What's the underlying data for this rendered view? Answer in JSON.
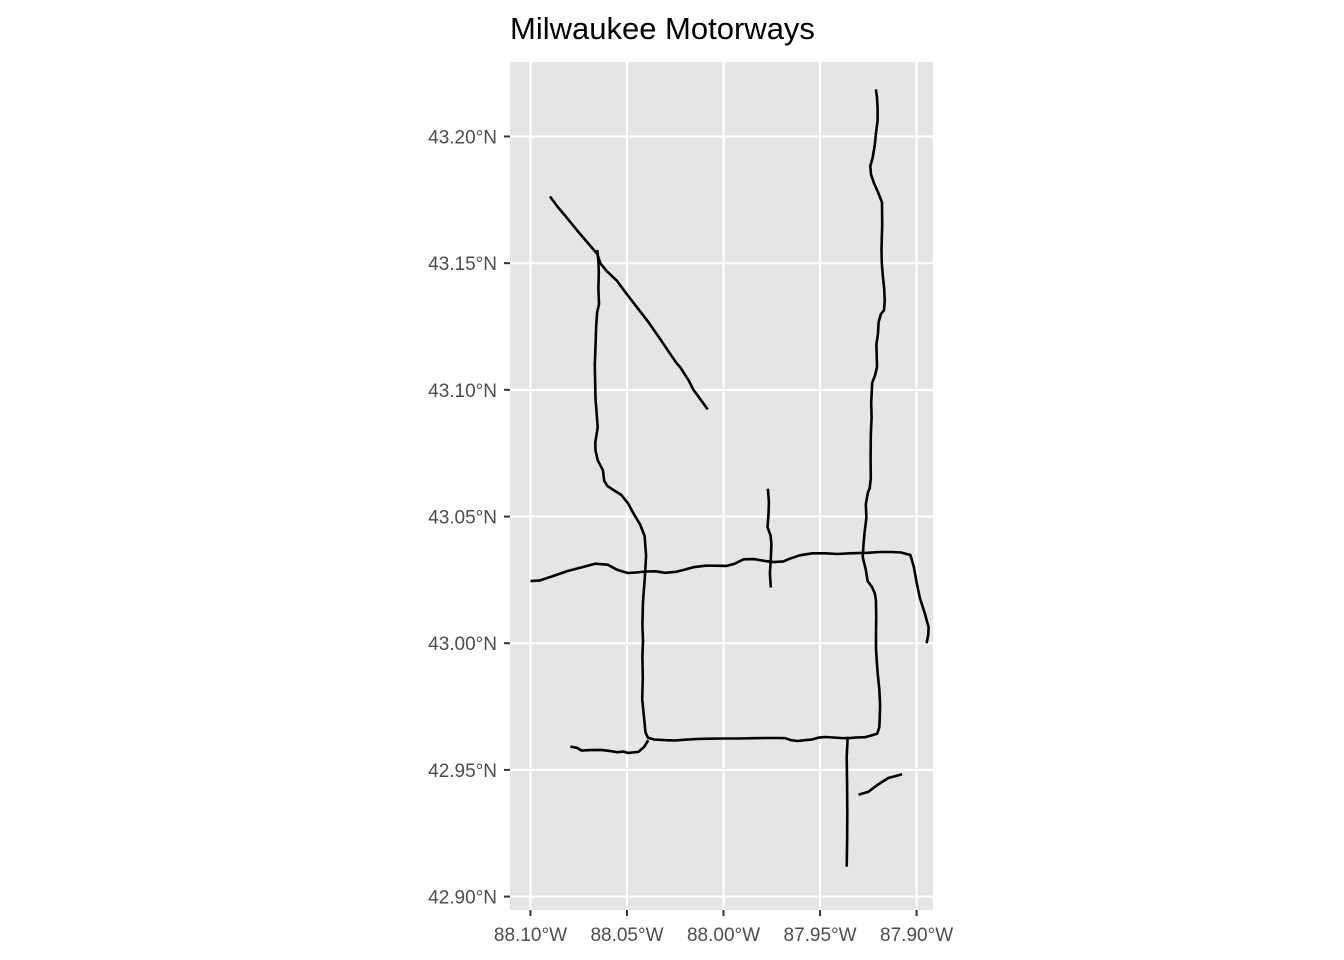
{
  "title": "Milwaukee Motorways",
  "colors": {
    "panel_background": "#e5e5e5",
    "gridline": "#ffffff",
    "road": "#000000",
    "tick": "#333333",
    "tick_label": "#4d4d4d"
  },
  "chart_data": {
    "type": "map",
    "title": "Milwaukee Motorways",
    "grid": true,
    "xlim": [
      -88.1106,
      -87.8915
    ],
    "ylim": [
      42.8947,
      43.2294
    ],
    "x_ticks": [
      {
        "value": -88.1,
        "label": "88.10°W"
      },
      {
        "value": -88.05,
        "label": "88.05°W"
      },
      {
        "value": -88.0,
        "label": "88.00°W"
      },
      {
        "value": -87.95,
        "label": "87.95°W"
      },
      {
        "value": -87.9,
        "label": "87.90°W"
      }
    ],
    "y_ticks": [
      {
        "value": 42.9,
        "label": "42.90°N"
      },
      {
        "value": 42.95,
        "label": "42.95°N"
      },
      {
        "value": 43.0,
        "label": "43.00°N"
      },
      {
        "value": 43.05,
        "label": "43.05°N"
      },
      {
        "value": 43.1,
        "label": "43.10°N"
      },
      {
        "value": 43.15,
        "label": "43.15°N"
      },
      {
        "value": 43.2,
        "label": "43.20°N"
      }
    ],
    "roads": [
      {
        "points": [
          [
            -88.0899,
            43.1763
          ],
          [
            -88.0855,
            43.1718
          ],
          [
            -88.0807,
            43.1675
          ],
          [
            -88.0752,
            43.1624
          ],
          [
            -88.0703,
            43.158
          ],
          [
            -88.0654,
            43.1536
          ],
          [
            -88.0638,
            43.1499
          ],
          [
            -88.0603,
            43.1467
          ],
          [
            -88.0554,
            43.1432
          ],
          [
            -88.0503,
            43.138
          ],
          [
            -88.0448,
            43.1326
          ],
          [
            -88.0394,
            43.1272
          ],
          [
            -88.0343,
            43.1217
          ],
          [
            -88.0294,
            43.1162
          ],
          [
            -88.0245,
            43.1107
          ],
          [
            -88.0223,
            43.1088
          ],
          [
            -88.0207,
            43.1068
          ],
          [
            -88.018,
            43.1036
          ],
          [
            -88.0158,
            43.1003
          ],
          [
            -88.0082,
            43.0923
          ]
        ]
      },
      {
        "points": [
          [
            -88.0654,
            43.1552
          ],
          [
            -88.0648,
            43.1508
          ],
          [
            -88.0646,
            43.1464
          ],
          [
            -88.0648,
            43.14
          ],
          [
            -88.0645,
            43.1338
          ],
          [
            -88.0655,
            43.1305
          ],
          [
            -88.066,
            43.1248
          ],
          [
            -88.0662,
            43.1192
          ],
          [
            -88.0667,
            43.1097
          ],
          [
            -88.0663,
            43.0966
          ],
          [
            -88.0656,
            43.0894
          ],
          [
            -88.0652,
            43.0852
          ],
          [
            -88.0664,
            43.0792
          ],
          [
            -88.0663,
            43.0761
          ],
          [
            -88.0652,
            43.0722
          ],
          [
            -88.0625,
            43.0683
          ],
          [
            -88.0618,
            43.0642
          ],
          [
            -88.0602,
            43.0621
          ],
          [
            -88.0571,
            43.0605
          ],
          [
            -88.0529,
            43.0585
          ],
          [
            -88.0494,
            43.0551
          ],
          [
            -88.0465,
            43.051
          ],
          [
            -88.0432,
            43.0469
          ],
          [
            -88.0409,
            43.0423
          ],
          [
            -88.0401,
            43.0345
          ],
          [
            -88.0408,
            43.0258
          ],
          [
            -88.0417,
            43.0164
          ],
          [
            -88.042,
            43.0074
          ],
          [
            -88.0417,
            43.0009
          ],
          [
            -88.042,
            42.9948
          ],
          [
            -88.0418,
            42.9863
          ],
          [
            -88.0421,
            42.978
          ],
          [
            -88.0412,
            42.9707
          ],
          [
            -88.0404,
            42.9648
          ],
          [
            -88.0391,
            42.9627
          ],
          [
            -88.0359,
            42.962
          ],
          [
            -88.0298,
            42.9617
          ],
          [
            -88.0251,
            42.9616
          ],
          [
            -88.0199,
            42.9619
          ],
          [
            -88.0138,
            42.9622
          ],
          [
            -88.0071,
            42.9623
          ],
          [
            -87.9999,
            42.9624
          ],
          [
            -87.992,
            42.9624
          ],
          [
            -87.9846,
            42.9625
          ],
          [
            -87.9769,
            42.9626
          ],
          [
            -87.9715,
            42.9626
          ],
          [
            -87.968,
            42.9625
          ],
          [
            -87.9649,
            42.9617
          ],
          [
            -87.9617,
            42.9614
          ],
          [
            -87.958,
            42.9617
          ],
          [
            -87.9541,
            42.962
          ],
          [
            -87.951,
            42.9627
          ],
          [
            -87.9476,
            42.963
          ],
          [
            -87.9432,
            42.9628
          ],
          [
            -87.939,
            42.9626
          ],
          [
            -87.9355,
            42.9625
          ],
          [
            -87.9314,
            42.9628
          ],
          [
            -87.9267,
            42.9629
          ],
          [
            -87.9204,
            42.9643
          ],
          [
            -87.9193,
            42.9668
          ],
          [
            -87.9191,
            42.97
          ],
          [
            -87.9189,
            42.9755
          ],
          [
            -87.9193,
            42.982
          ],
          [
            -87.9201,
            42.9875
          ],
          [
            -87.9206,
            42.9928
          ],
          [
            -87.921,
            42.9979
          ],
          [
            -87.921,
            43.0034
          ],
          [
            -87.9209,
            43.0109
          ],
          [
            -87.9211,
            43.0172
          ],
          [
            -87.9217,
            43.0198
          ],
          [
            -87.9232,
            43.0223
          ],
          [
            -87.9254,
            43.0245
          ],
          [
            -87.9263,
            43.029
          ],
          [
            -87.9279,
            43.034
          ],
          [
            -87.9275,
            43.039
          ],
          [
            -87.9268,
            43.0445
          ],
          [
            -87.926,
            43.0495
          ],
          [
            -87.9263,
            43.0548
          ],
          [
            -87.9252,
            43.0595
          ],
          [
            -87.9243,
            43.0612
          ],
          [
            -87.9237,
            43.065
          ],
          [
            -87.9238,
            43.0729
          ],
          [
            -87.9237,
            43.0818
          ],
          [
            -87.9235,
            43.0857
          ],
          [
            -87.9233,
            43.0891
          ],
          [
            -87.9235,
            43.095
          ],
          [
            -87.923,
            43.1028
          ],
          [
            -87.9215,
            43.1058
          ],
          [
            -87.9205,
            43.1091
          ],
          [
            -87.9208,
            43.118
          ],
          [
            -87.92,
            43.1222
          ],
          [
            -87.9197,
            43.1267
          ],
          [
            -87.9185,
            43.1299
          ],
          [
            -87.9169,
            43.1314
          ],
          [
            -87.9165,
            43.135
          ],
          [
            -87.9168,
            43.14
          ],
          [
            -87.9175,
            43.145
          ],
          [
            -87.918,
            43.15
          ],
          [
            -87.9182,
            43.155
          ],
          [
            -87.918,
            43.16
          ],
          [
            -87.9178,
            43.165
          ],
          [
            -87.9179,
            43.174
          ],
          [
            -87.92,
            43.178
          ],
          [
            -87.922,
            43.1815
          ],
          [
            -87.9236,
            43.185
          ],
          [
            -87.924,
            43.1883
          ],
          [
            -87.9228,
            43.1915
          ],
          [
            -87.9217,
            43.1965
          ],
          [
            -87.9211,
            43.201
          ],
          [
            -87.9202,
            43.2063
          ],
          [
            -87.9202,
            43.2112
          ],
          [
            -87.9205,
            43.2153
          ],
          [
            -87.9211,
            43.2186
          ]
        ]
      },
      {
        "points": [
          [
            -88.1,
            43.0245
          ],
          [
            -88.095,
            43.0248
          ],
          [
            -88.0884,
            43.0265
          ],
          [
            -88.0807,
            43.0285
          ],
          [
            -88.0733,
            43.03
          ],
          [
            -88.0665,
            43.0314
          ],
          [
            -88.06,
            43.031
          ],
          [
            -88.0552,
            43.029
          ],
          [
            -88.0496,
            43.0277
          ],
          [
            -88.0454,
            43.0279
          ],
          [
            -88.0399,
            43.0283
          ],
          [
            -88.0351,
            43.0284
          ],
          [
            -88.0303,
            43.0278
          ],
          [
            -88.0245,
            43.0282
          ],
          [
            -88.0203,
            43.029
          ],
          [
            -88.0156,
            43.03
          ],
          [
            -88.0094,
            43.0306
          ],
          [
            -88.0041,
            43.0306
          ],
          [
            -87.9984,
            43.0305
          ],
          [
            -87.9942,
            43.0314
          ],
          [
            -87.9896,
            43.0331
          ],
          [
            -87.9841,
            43.0332
          ],
          [
            -87.9788,
            43.0325
          ],
          [
            -87.9739,
            43.032
          ],
          [
            -87.969,
            43.0323
          ],
          [
            -87.9659,
            43.0333
          ],
          [
            -87.9605,
            43.0347
          ],
          [
            -87.954,
            43.0355
          ],
          [
            -87.947,
            43.0355
          ],
          [
            -87.941,
            43.0352
          ],
          [
            -87.9346,
            43.0355
          ],
          [
            -87.9253,
            43.0357
          ],
          [
            -87.9191,
            43.036
          ],
          [
            -87.9128,
            43.036
          ],
          [
            -87.9081,
            43.0358
          ],
          [
            -87.9032,
            43.0348
          ],
          [
            -87.9014,
            43.03
          ],
          [
            -87.9,
            43.024
          ],
          [
            -87.8983,
            43.0178
          ],
          [
            -87.8957,
            43.0117
          ],
          [
            -87.8938,
            43.0063
          ],
          [
            -87.894,
            43.0032
          ],
          [
            -87.8948,
            43.0
          ]
        ]
      },
      {
        "points": [
          [
            -87.977,
            43.061
          ],
          [
            -87.9765,
            43.0556
          ],
          [
            -87.9767,
            43.0508
          ],
          [
            -87.9772,
            43.0458
          ],
          [
            -87.9756,
            43.0425
          ],
          [
            -87.9752,
            43.039
          ],
          [
            -87.9755,
            43.0332
          ],
          [
            -87.976,
            43.0276
          ],
          [
            -87.9755,
            43.022
          ]
        ]
      },
      {
        "points": [
          [
            -87.9357,
            42.9631
          ],
          [
            -87.9362,
            42.9552
          ],
          [
            -87.936,
            42.9439
          ],
          [
            -87.9359,
            42.9323
          ],
          [
            -87.936,
            42.9212
          ],
          [
            -87.9362,
            42.9118
          ]
        ]
      },
      {
        "points": [
          [
            -88.0793,
            42.9592
          ],
          [
            -88.076,
            42.9587
          ],
          [
            -88.0735,
            42.9576
          ],
          [
            -88.0692,
            42.9578
          ],
          [
            -88.0632,
            42.9579
          ],
          [
            -88.0591,
            42.9575
          ],
          [
            -88.0551,
            42.957
          ],
          [
            -88.0516,
            42.9572
          ],
          [
            -88.0498,
            42.9567
          ],
          [
            -88.0441,
            42.9571
          ],
          [
            -88.0411,
            42.9591
          ],
          [
            -88.039,
            42.9617
          ]
        ]
      },
      {
        "points": [
          [
            -87.9301,
            42.9402
          ],
          [
            -87.9249,
            42.9414
          ],
          [
            -87.9196,
            42.9444
          ],
          [
            -87.9147,
            42.9468
          ],
          [
            -87.9117,
            42.9474
          ],
          [
            -87.9075,
            42.9483
          ]
        ]
      }
    ]
  }
}
